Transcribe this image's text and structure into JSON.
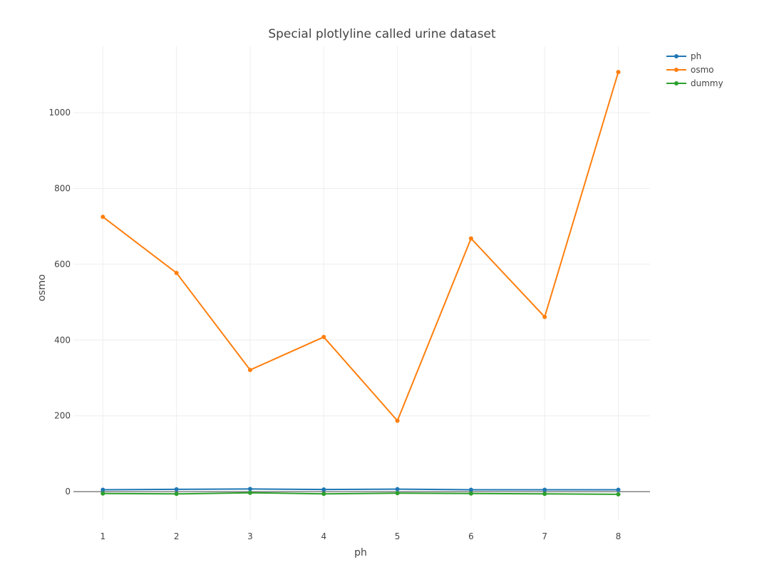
{
  "chart_data": {
    "type": "line",
    "title": "Special plotlyline called urine dataset",
    "xlabel": "ph",
    "ylabel": "osmo",
    "x": [
      1,
      2,
      3,
      4,
      5,
      6,
      7,
      8
    ],
    "series": [
      {
        "name": "ph",
        "color": "#1f77b4",
        "values": [
          5,
          6,
          7,
          5.5,
          6.5,
          5,
          5,
          5
        ]
      },
      {
        "name": "osmo",
        "color": "#ff7f0e",
        "values": [
          725,
          577,
          321,
          408,
          187,
          668,
          461,
          1107
        ]
      },
      {
        "name": "dummy",
        "color": "#2ca02c",
        "values": [
          -5,
          -6,
          -3,
          -6,
          -4,
          -5,
          -6,
          -7
        ]
      }
    ],
    "xticks": [
      "1",
      "2",
      "3",
      "4",
      "5",
      "6",
      "7",
      "8"
    ],
    "yticks": [
      "0",
      "200",
      "400",
      "600",
      "800",
      "1000"
    ],
    "xlim": [
      0.6,
      8.43
    ],
    "ylim": [
      -75,
      1175
    ],
    "grid": true,
    "legend_position": "top-right"
  }
}
